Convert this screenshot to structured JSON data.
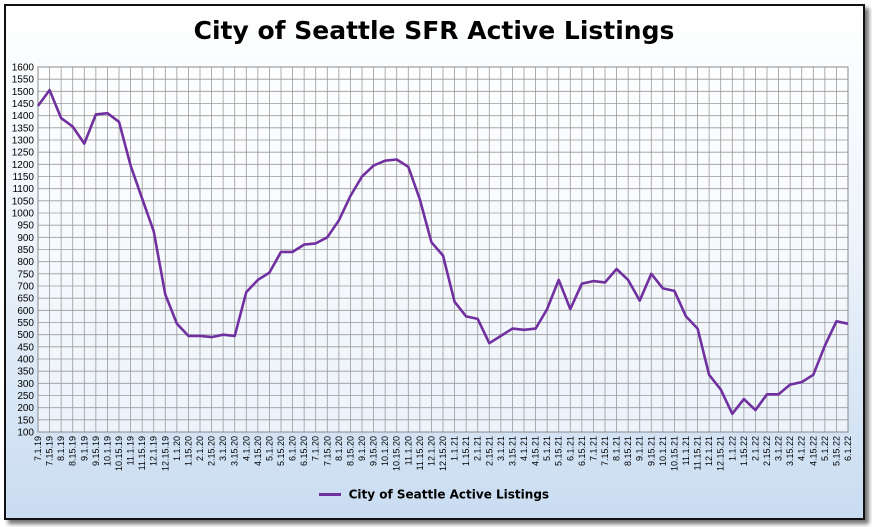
{
  "chart_data": {
    "type": "line",
    "title": "City of Seattle SFR Active Listings",
    "xlabel": "",
    "ylabel": "",
    "ylim": [
      100,
      1600
    ],
    "y_tick_step": 50,
    "grid": true,
    "legend_position": "bottom",
    "categories": [
      "7.1.19",
      "7.15.19",
      "8.1.19",
      "8.15.19",
      "9.1.19",
      "9.15.19",
      "10.1.19",
      "10.15.19",
      "11.1.19",
      "11.15.19",
      "12.1.19",
      "12.15.19",
      "1.1.20",
      "1.15.20",
      "2.1.20",
      "2.15.20",
      "3.1.20",
      "3.15.20",
      "4.1.20",
      "4.15.20",
      "5.1.20",
      "5.15.20",
      "6.1.20",
      "6.15.20",
      "7.1.20",
      "7.15.20",
      "8.1.20",
      "8.15.20",
      "9.1.20",
      "9.15.20",
      "10.1.20",
      "10.15.20",
      "11.1.20",
      "11.15.20",
      "12.1.20",
      "12.15.20",
      "1.1.21",
      "1.15.21",
      "2.1.21",
      "2.15.21",
      "3.1.21",
      "3.15.21",
      "4.1.21",
      "4.15.21",
      "5.1.21",
      "5.15.21",
      "6.1.21",
      "6.15.21",
      "7.1.21",
      "7.15.21",
      "8.1.21",
      "8.15.21",
      "9.1.21",
      "9.15.21",
      "10.1.21",
      "10.15.21",
      "11.1.21",
      "11.15.21",
      "12.1.21",
      "12.15.21",
      "1.1.22",
      "1.15.22",
      "2.1.22",
      "2.15.22",
      "3.1.22",
      "3.15.22",
      "4.1.22",
      "4.15.22",
      "5.1.22",
      "5.15.22",
      "6.1.22"
    ],
    "series": [
      {
        "name": "City of Seattle Active Listings",
        "color": "#7030a0",
        "values": [
          1440,
          1505,
          1390,
          1355,
          1285,
          1405,
          1410,
          1375,
          1195,
          1060,
          925,
          665,
          545,
          495,
          495,
          490,
          500,
          495,
          675,
          725,
          755,
          840,
          840,
          870,
          875,
          900,
          970,
          1070,
          1150,
          1195,
          1215,
          1220,
          1190,
          1055,
          880,
          825,
          635,
          575,
          565,
          465,
          495,
          525,
          520,
          525,
          605,
          725,
          605,
          710,
          720,
          715,
          770,
          725,
          640,
          750,
          690,
          680,
          575,
          525,
          335,
          275,
          175,
          235,
          190,
          255,
          255,
          295,
          305,
          335,
          455,
          555,
          545
        ]
      }
    ]
  }
}
